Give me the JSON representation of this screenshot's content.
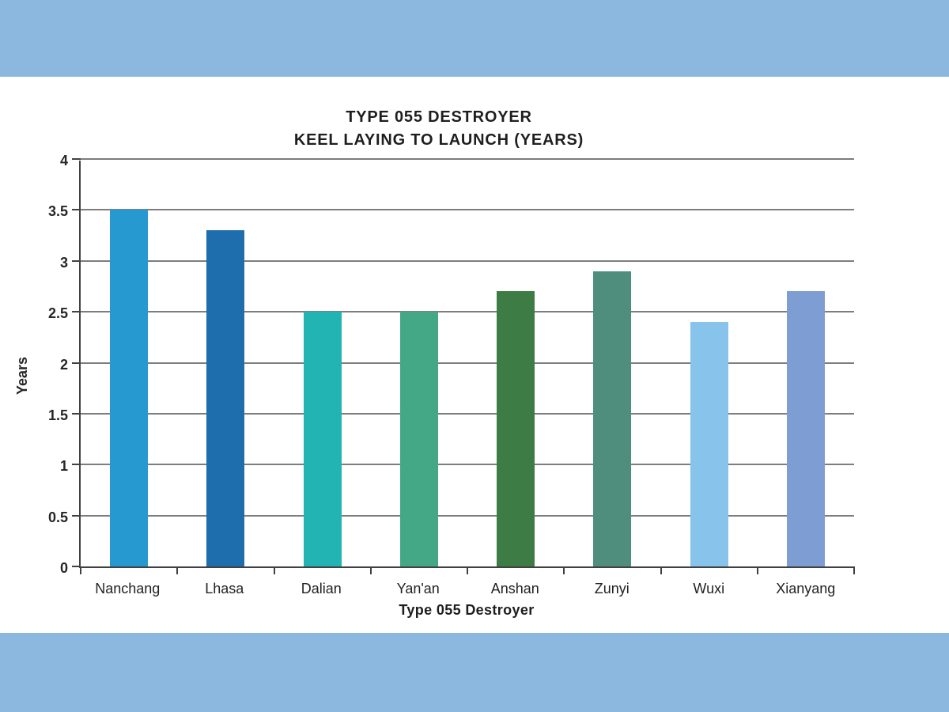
{
  "page": {
    "band_color": "#8cb8e0",
    "background_color": "#ffffff"
  },
  "chart_data": {
    "type": "bar",
    "title_lines": [
      "TYPE 055 DESTROYER",
      "KEEL LAYING TO LAUNCH (YEARS)"
    ],
    "xlabel": "Type 055 Destroyer",
    "ylabel": "Years",
    "categories": [
      "Nanchang",
      "Lhasa",
      "Dalian",
      "Yan'an",
      "Anshan",
      "Zunyi",
      "Wuxi",
      "Xianyang"
    ],
    "values": [
      3.5,
      3.3,
      2.5,
      2.5,
      2.7,
      2.9,
      2.4,
      2.7
    ],
    "bar_colors": [
      "#2799d1",
      "#1e6ead",
      "#22b3b3",
      "#44a886",
      "#3d7c45",
      "#4f8e7d",
      "#87c3ea",
      "#7e9dd2"
    ],
    "ylim": [
      0,
      4
    ],
    "ytick_step": 0.5,
    "yticks": [
      "0",
      "0.5",
      "1",
      "1.5",
      "2",
      "2.5",
      "3",
      "3.5",
      "4"
    ],
    "grid": true,
    "legend": false
  }
}
